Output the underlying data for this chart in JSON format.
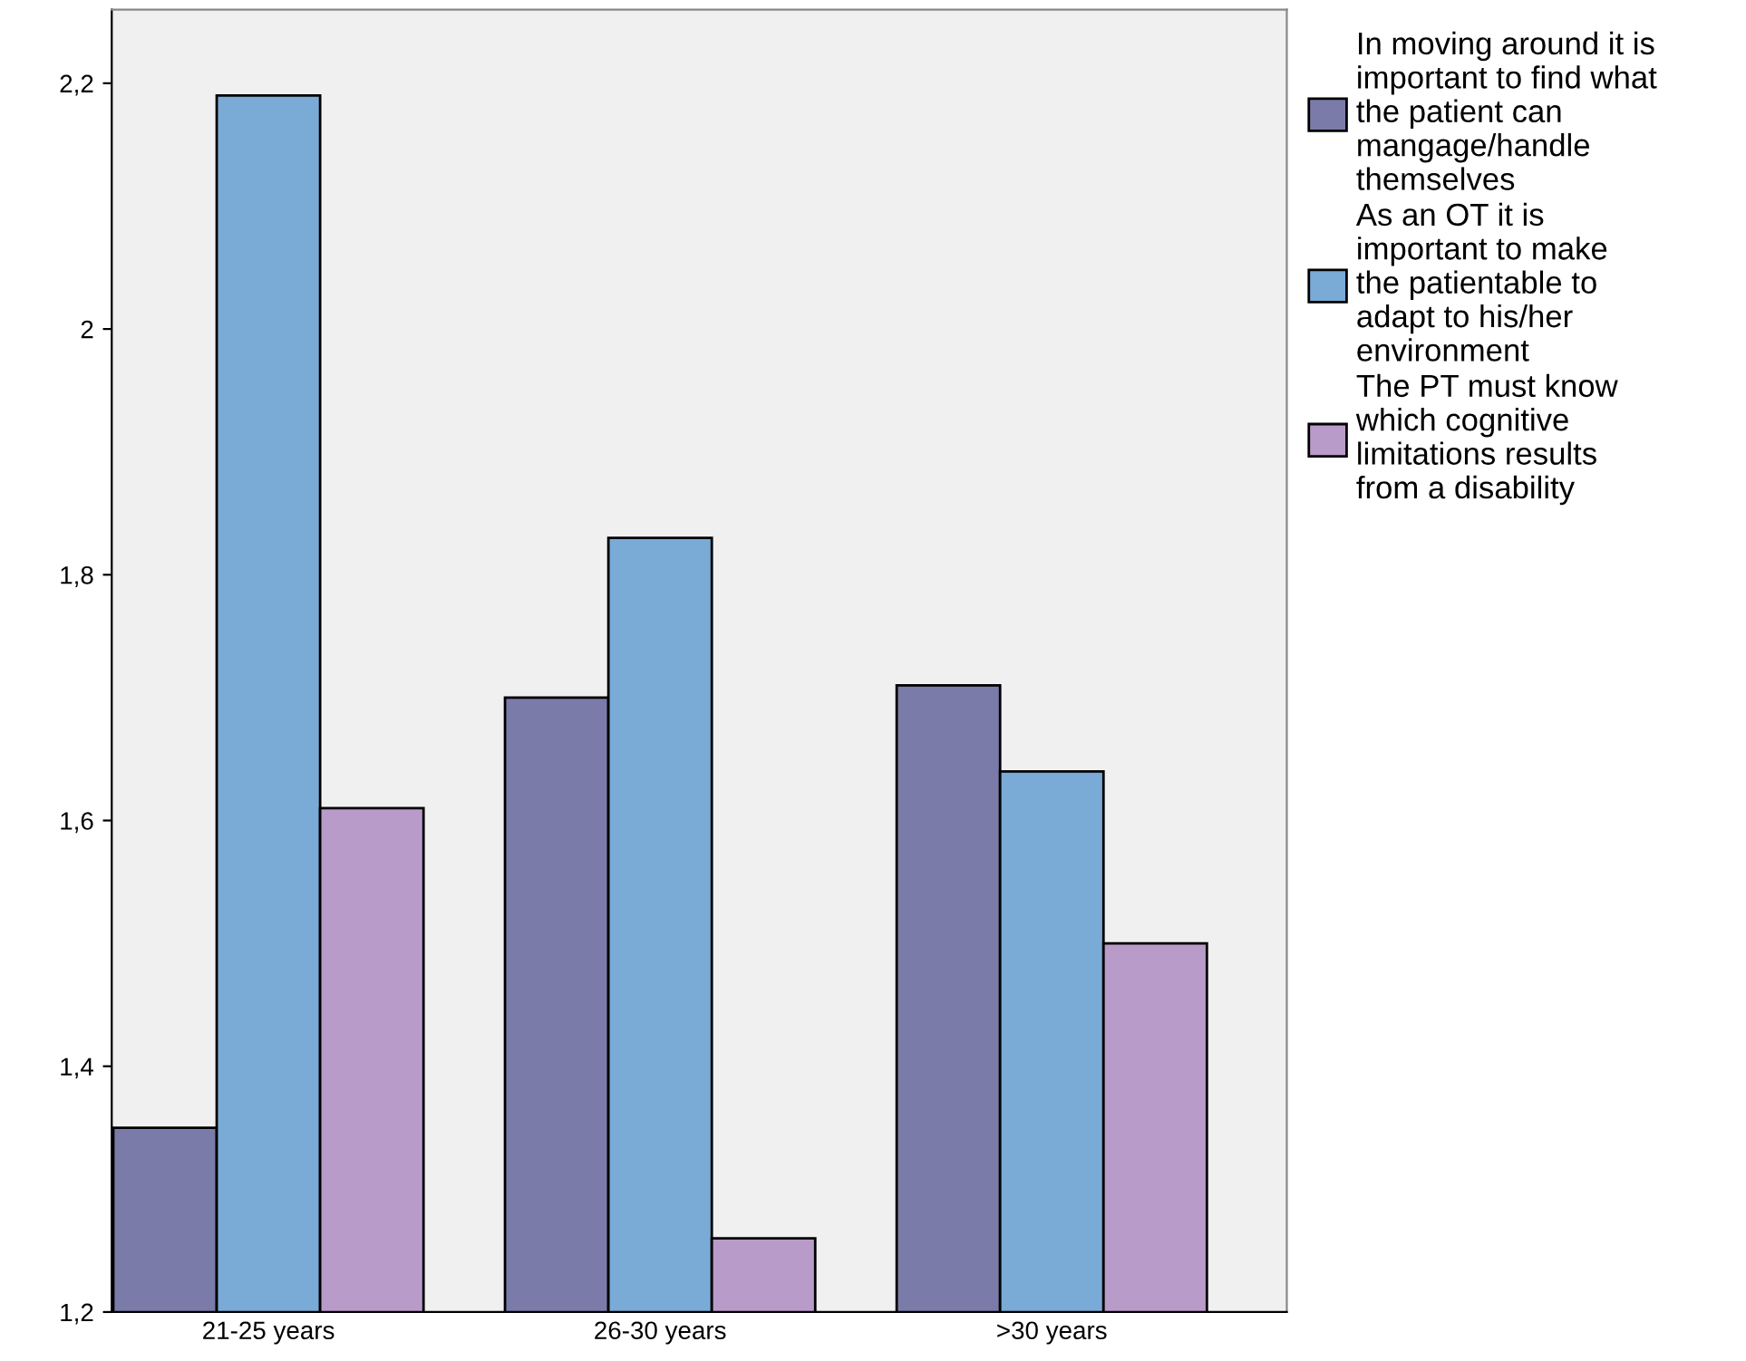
{
  "chart_data": {
    "type": "bar",
    "categories": [
      "21-25 years",
      "26-30 years",
      ">30 years"
    ],
    "series": [
      {
        "name": "In moving around it is\nimportant to find what\nthe patient can\nmangage/handle\nthemselves",
        "color": "#7b7baa",
        "values": [
          1.35,
          1.7,
          1.71
        ]
      },
      {
        "name": "As an OT it is\nimportant to make\nthe patientable to\nadapt to his/her\nenvironment",
        "color": "#7aaad6",
        "values": [
          2.19,
          1.83,
          1.64
        ]
      },
      {
        "name": "The PT must know\nwhich cognitive\nlimitations results\nfrom a disability",
        "color": "#b99bc9",
        "values": [
          1.61,
          1.26,
          1.5
        ]
      }
    ],
    "ylim": [
      1.2,
      2.26
    ],
    "yticks": [
      {
        "value": 1.2,
        "label": "1,2"
      },
      {
        "value": 1.4,
        "label": "1,4"
      },
      {
        "value": 1.6,
        "label": "1,6"
      },
      {
        "value": 1.8,
        "label": "1,8"
      },
      {
        "value": 2.0,
        "label": "2"
      },
      {
        "value": 2.2,
        "label": "2,2"
      }
    ],
    "grid": false,
    "legend": "top right"
  }
}
